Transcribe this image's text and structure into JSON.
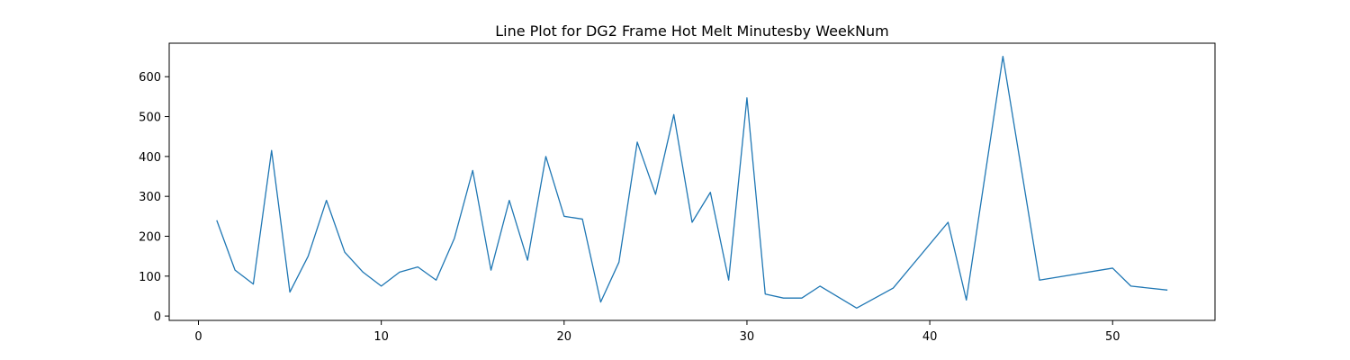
{
  "chart_data": {
    "type": "line",
    "title": "Line Plot for DG2 Frame Hot Melt Minutesby WeekNum",
    "xlabel": "",
    "ylabel": "",
    "xlim": [
      -1.6,
      55.6
    ],
    "ylim": [
      -11,
      684
    ],
    "xticks": [
      0,
      10,
      20,
      30,
      40,
      50
    ],
    "yticks": [
      0,
      100,
      200,
      300,
      400,
      500,
      600
    ],
    "grid": false,
    "line_color": "#1f77b4",
    "series": [
      {
        "x": [
          1,
          2,
          3,
          4,
          5,
          6,
          7,
          8,
          9,
          10,
          11,
          12,
          13,
          14,
          15,
          16,
          17,
          18,
          19,
          20,
          21,
          22,
          23,
          24,
          25,
          26,
          27,
          28,
          29,
          30,
          31,
          32,
          33,
          34,
          36,
          38,
          41,
          42,
          44,
          46,
          50,
          51,
          53
        ],
        "values": [
          240,
          115,
          80,
          415,
          60,
          150,
          290,
          160,
          110,
          75,
          110,
          123,
          90,
          195,
          365,
          115,
          290,
          140,
          400,
          250,
          243,
          35,
          135,
          436,
          305,
          505,
          235,
          310,
          90,
          547,
          55,
          45,
          45,
          75,
          20,
          70,
          235,
          40,
          651,
          90,
          120,
          75,
          65
        ]
      }
    ]
  }
}
